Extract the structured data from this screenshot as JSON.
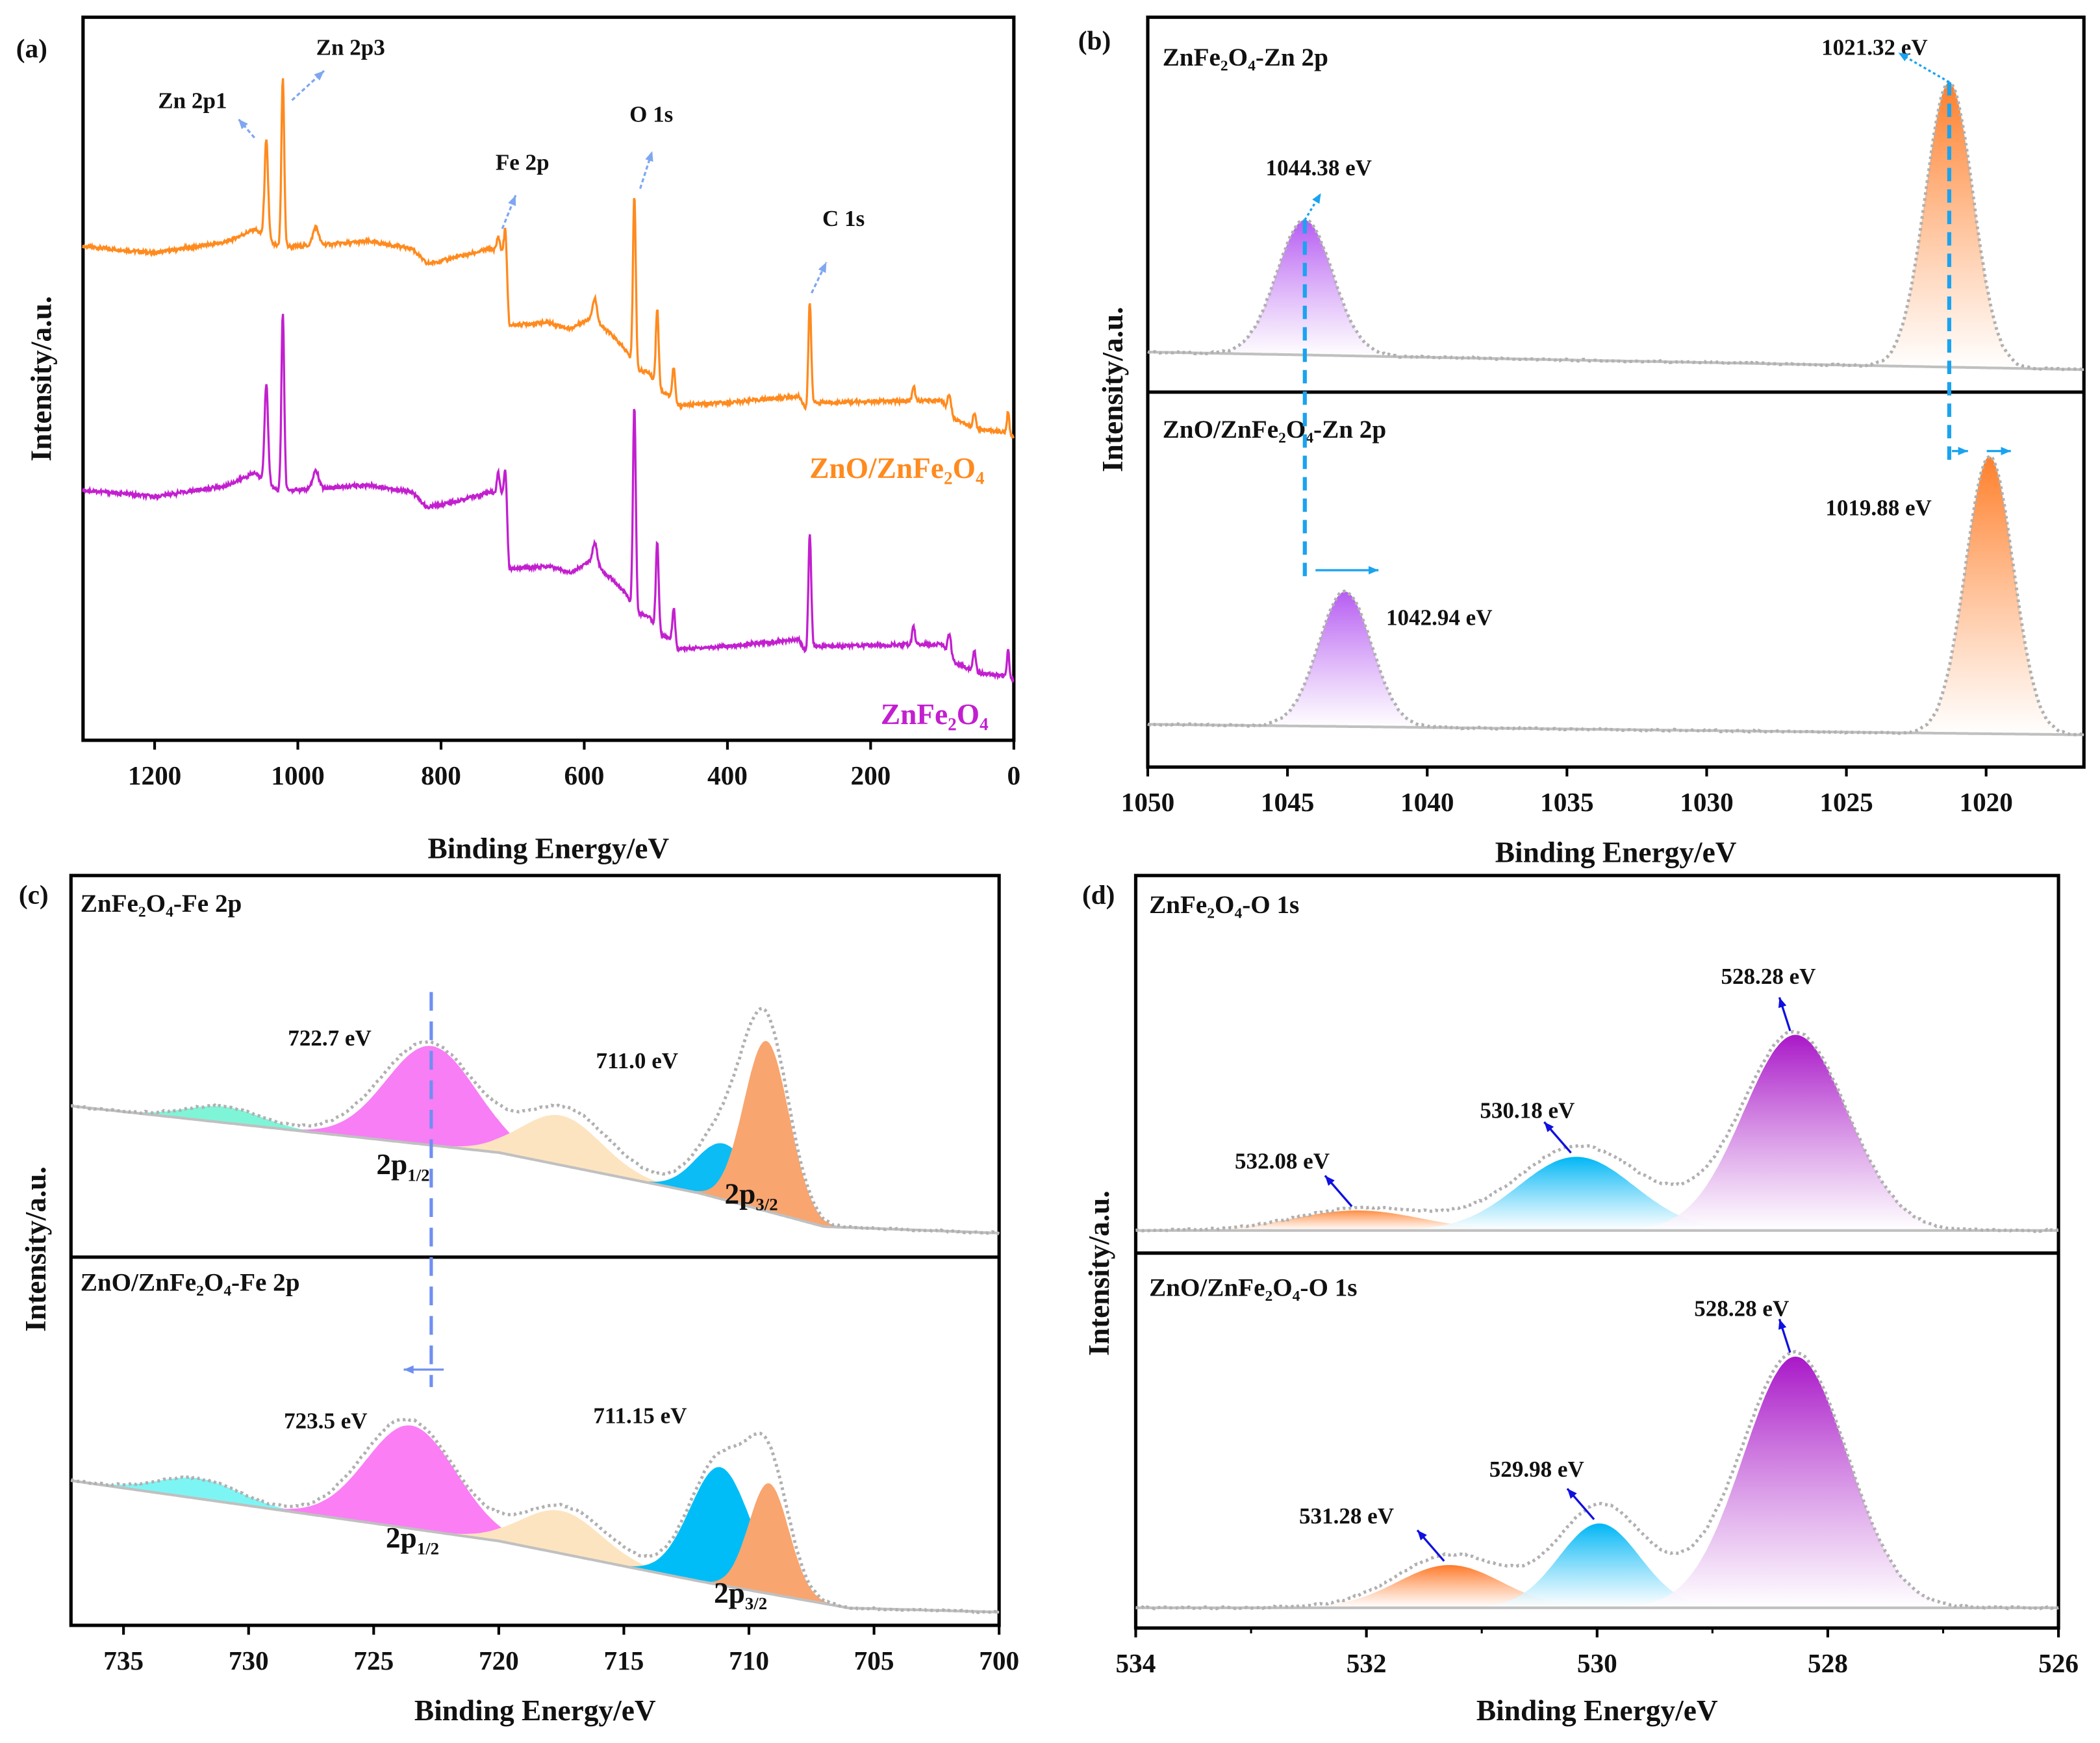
{
  "chart_data": [
    {
      "panel": "(a)",
      "type": "line",
      "xlabel": "Binding Energy/eV",
      "ylabel": "Intensity/a.u.",
      "xlim": [
        1300,
        0
      ],
      "ylim": [
        0,
        100
      ],
      "xticks": [
        1200,
        1000,
        800,
        600,
        400,
        200,
        0
      ],
      "annotations": [
        {
          "text": "Zn 2p1",
          "x": 1044
        },
        {
          "text": "Zn 2p3",
          "x": 1021
        },
        {
          "text": "Fe 2p",
          "x": 710
        },
        {
          "text": "O 1s",
          "x": 530
        },
        {
          "text": "C 1s",
          "x": 285
        }
      ],
      "series": [
        {
          "name": "ZnO/ZnFe₂O₄",
          "color": "#ff8a1e",
          "baseline": [
            [
              1300,
              68.3
            ],
            [
              1200,
              67.4
            ],
            [
              1100,
              68.9
            ],
            [
              1060,
              70.7
            ],
            [
              1030,
              68.3
            ],
            [
              1000,
              68.3
            ],
            [
              900,
              69
            ],
            [
              840,
              68
            ],
            [
              820,
              65.9
            ],
            [
              800,
              66.3
            ],
            [
              730,
              68
            ],
            [
              710,
              67.4
            ],
            [
              705,
              57.4
            ],
            [
              650,
              57.8
            ],
            [
              620,
              56.9
            ],
            [
              590,
              58.5
            ],
            [
              560,
              55.9
            ],
            [
              540,
              53.7
            ],
            [
              530,
              51.3
            ],
            [
              510,
              50.9
            ],
            [
              495,
              48.5
            ],
            [
              480,
              47.6
            ],
            [
              470,
              46.3
            ],
            [
              400,
              46.7
            ],
            [
              300,
              47.6
            ],
            [
              290,
              45.7
            ],
            [
              280,
              46.7
            ],
            [
              100,
              47
            ],
            [
              90,
              44.8
            ],
            [
              50,
              43
            ],
            [
              10,
              42.6
            ],
            [
              0,
              42
            ]
          ],
          "peaks": [
            [
              1044,
              13.5,
              2.5
            ],
            [
              1021,
              23.3,
              2
            ],
            [
              975,
              2.5,
              4
            ],
            [
              720,
              2,
              2
            ],
            [
              710,
              3.5,
              2
            ],
            [
              585,
              3,
              3
            ],
            [
              530,
              24,
              2
            ],
            [
              498,
              10.7,
              2
            ],
            [
              475,
              4.6,
              2
            ],
            [
              285,
              14.4,
              2
            ],
            [
              140,
              2,
              2
            ],
            [
              90,
              3,
              2.5
            ],
            [
              55,
              2,
              2
            ],
            [
              8,
              3,
              1.5
            ]
          ],
          "offset": 0
        },
        {
          "name": "ZnFe₂O₄",
          "color": "#c21fcf",
          "baseline": "same as ZnO/ZnFe₂O₄",
          "peaks": [
            [
              1044,
              13.5,
              2.5
            ],
            [
              1021,
              24.4,
              2
            ],
            [
              975,
              2.5,
              4
            ],
            [
              720,
              3,
              2
            ],
            [
              710,
              4,
              2
            ],
            [
              585,
              3,
              3
            ],
            [
              530,
              28.5,
              2
            ],
            [
              498,
              12,
              2
            ],
            [
              475,
              5,
              2
            ],
            [
              285,
              16,
              2
            ],
            [
              140,
              2.5,
              2
            ],
            [
              90,
              3.5,
              2.5
            ],
            [
              55,
              3,
              2
            ],
            [
              8,
              4,
              1.5
            ]
          ],
          "offset": -33.7
        }
      ]
    },
    {
      "panel": "(b)",
      "type": "area",
      "xlabel": "Binding Energy/eV",
      "ylabel": "Intensity/a.u.",
      "xlim": [
        1050,
        1016.5
      ],
      "xticks": [
        1050,
        1045,
        1040,
        1035,
        1030,
        1025,
        1020
      ],
      "subplots": [
        {
          "title": "ZnFe₂O₄-Zn 2p",
          "ylim": [
            0,
            100
          ],
          "baseline": [
            [
              1050,
              10.7
            ],
            [
              1016.5,
              6
            ]
          ],
          "components": [
            {
              "center": 1044.38,
              "height": 36,
              "sigma": 1.0,
              "color": "#b65cf2",
              "label": "1044.38 eV"
            },
            {
              "center": 1021.32,
              "height": 76,
              "sigma": 0.85,
              "color": "#ff7f2a",
              "label": "1021.32 eV"
            }
          ]
        },
        {
          "title": "ZnO/ZnFe₂O₄-Zn 2p",
          "ylim": [
            0,
            100
          ],
          "baseline": [
            [
              1050,
              11.4
            ],
            [
              1016.5,
              8.6
            ]
          ],
          "components": [
            {
              "center": 1042.94,
              "height": 36,
              "sigma": 0.95,
              "color": "#b65cf2",
              "label": "1042.94 eV"
            },
            {
              "center": 1019.88,
              "height": 74,
              "sigma": 0.85,
              "color": "#ff7f2a",
              "label": "1019.88 eV"
            }
          ]
        }
      ]
    },
    {
      "panel": "(c)",
      "type": "area",
      "xlabel": "Binding Energy/eV",
      "ylabel": "Intensity/a.u.",
      "xlim": [
        737.1,
        700
      ],
      "xticks": [
        735,
        730,
        725,
        720,
        715,
        710,
        705,
        700
      ],
      "subplots": [
        {
          "title": "ZnFe₂O₄-Fe 2p",
          "ylim": [
            0,
            100
          ],
          "baseline": [
            [
              737.1,
              39.6
            ],
            [
              720,
              27.4
            ],
            [
              712,
              16.8
            ],
            [
              707,
              8
            ],
            [
              700,
              6.3
            ]
          ],
          "components": [
            {
              "center": 731,
              "height": 4.2,
              "sigma": 1.5,
              "color": "#7ff5d8"
            },
            {
              "center": 722.7,
              "height": 26,
              "sigma": 1.8,
              "color": "#f77ef5"
            },
            {
              "center": 717.5,
              "height": 13,
              "sigma": 1.6,
              "color": "#fde4c0"
            },
            {
              "center": 711.0,
              "height": 14.7,
              "sigma": 1.1,
              "color": "#0bbcf5"
            },
            {
              "center": 709.3,
              "height": 44.6,
              "sigma": 0.9,
              "color": "#f9a56f"
            }
          ],
          "labels": [
            "722.7 eV",
            "711.0 eV",
            "2p1/2",
            "2p3/2"
          ]
        },
        {
          "title": "ZnO/ZnFe₂O₄-Fe 2p",
          "ylim": [
            0,
            100
          ],
          "baseline": [
            [
              737.1,
              39.3
            ],
            [
              720,
              22.9
            ],
            [
              712,
              12
            ],
            [
              706,
              4.7
            ],
            [
              700,
              3.6
            ]
          ],
          "components": [
            {
              "center": 732,
              "height": 5.5,
              "sigma": 1.6,
              "color": "#7ef5f5"
            },
            {
              "center": 723.5,
              "height": 28,
              "sigma": 1.8,
              "color": "#fb7ef5"
            },
            {
              "center": 717.5,
              "height": 11.6,
              "sigma": 1.6,
              "color": "#fde4c0"
            },
            {
              "center": 711.15,
              "height": 32,
              "sigma": 1.2,
              "color": "#00bdf7"
            },
            {
              "center": 709.2,
              "height": 30,
              "sigma": 0.8,
              "color": "#f9a56f"
            }
          ],
          "labels": [
            "723.5 eV",
            "711.15 eV",
            "2p1/2",
            "2p3/2"
          ]
        }
      ]
    },
    {
      "panel": "(d)",
      "type": "area",
      "xlabel": "Binding Energy/eV",
      "ylabel": "Intensity/a.u.",
      "xlim": [
        534,
        526
      ],
      "xticks": [
        534,
        532,
        530,
        528,
        526
      ],
      "subplots": [
        {
          "title": "ZnFe₂O₄-O 1s",
          "ylim": [
            0,
            100
          ],
          "baseline": [
            [
              534,
              6
            ],
            [
              526,
              6
            ]
          ],
          "components": [
            {
              "center": 532.08,
              "height": 5.3,
              "sigma": 0.55,
              "color": "#ff8c40",
              "label": "532.08 eV"
            },
            {
              "center": 530.18,
              "height": 19.5,
              "sigma": 0.5,
              "color": "#00b6f5",
              "label": "530.18 eV"
            },
            {
              "center": 528.28,
              "height": 51.8,
              "sigma": 0.45,
              "color": "#a918c8",
              "label": "528.28 eV"
            }
          ]
        },
        {
          "title": "ZnO/ZnFe₂O₄-O 1s",
          "ylim": [
            0,
            100
          ],
          "baseline": [
            [
              534,
              5.4
            ],
            [
              526,
              5.4
            ]
          ],
          "components": [
            {
              "center": 531.28,
              "height": 11.4,
              "sigma": 0.45,
              "color": "#ff7a2a",
              "label": "531.28 eV"
            },
            {
              "center": 529.98,
              "height": 22.5,
              "sigma": 0.35,
              "color": "#00b6f5",
              "label": "529.98 eV"
            },
            {
              "center": 528.28,
              "height": 67,
              "sigma": 0.45,
              "color": "#a918c8",
              "label": "528.28 eV"
            }
          ]
        }
      ]
    }
  ]
}
